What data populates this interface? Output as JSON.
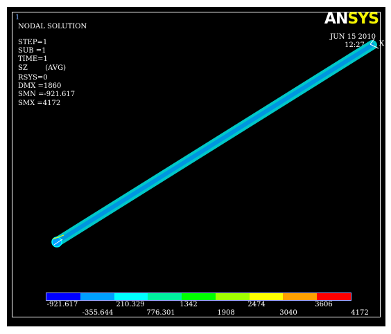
{
  "window_number": "1",
  "title": "NODAL SOLUTION",
  "info": [
    "STEP=1",
    "SUB =1",
    "TIME=1",
    "SZ        (AVG)",
    "RSYS=0",
    "DMX =1860",
    "SMN =-921.617",
    "SMX =4172"
  ],
  "logo": {
    "an": "AN",
    "sys": "SYS"
  },
  "date": "JUN 15 2010",
  "time": "12:27:22",
  "triad_label": "X",
  "legend": {
    "colors": [
      "#0000ff",
      "#00a0ff",
      "#00ffff",
      "#00f0a0",
      "#00ff00",
      "#a0ff00",
      "#ffff00",
      "#ffa000",
      "#ff0000"
    ],
    "top_labels": [
      "-921.617",
      "210.329",
      "1342",
      "2474",
      "3606"
    ],
    "bottom_labels": [
      "-355.644",
      "776.301",
      "1908",
      "3040",
      "4172"
    ]
  },
  "colors": {
    "background": "#000000",
    "beam_outer": "#00c8c8",
    "beam_core": "#0096e0",
    "logo_sys": "#f4f400"
  }
}
